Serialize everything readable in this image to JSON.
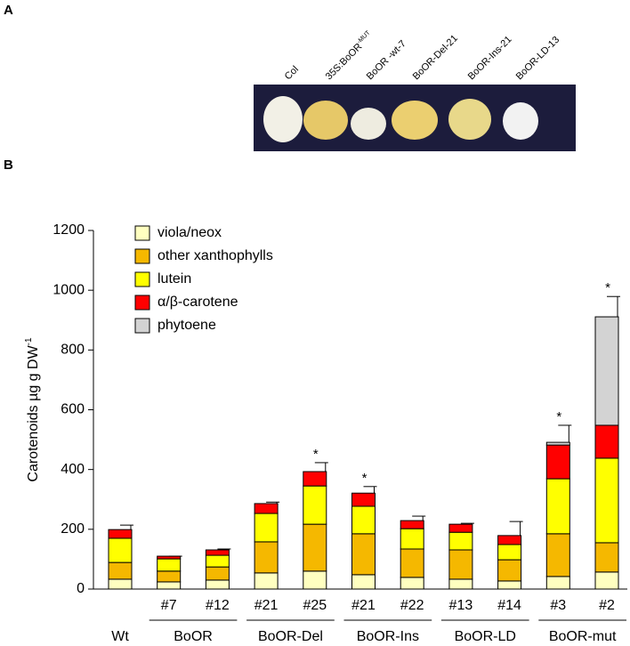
{
  "panel_a": {
    "letter": "A",
    "photo_labels": [
      {
        "text": "Col"
      },
      {
        "text": "35S:BoOR",
        "sup": "-MUT"
      },
      {
        "text": "BoOR -wt-7"
      },
      {
        "text": "BoOR-Del-21"
      },
      {
        "text": "BoOR-Ins-21"
      },
      {
        "text": "BoOR-LD-13"
      }
    ]
  },
  "panel_b": {
    "letter": "B"
  },
  "chart_data": {
    "type": "stacked_bar",
    "ylabel": {
      "text": "Carotenoids µg g DW",
      "sup": "-1"
    },
    "categories": [
      "Wt",
      "#7",
      "#12",
      "#21",
      "#25",
      "#21",
      "#22",
      "#13",
      "#14",
      "#3",
      "#2"
    ],
    "groups": [
      null,
      "BoOR",
      "BoOR",
      "BoOR-Del",
      "BoOR-Del",
      "BoOR-Ins",
      "BoOR-Ins",
      "BoOR-LD",
      "BoOR-LD",
      "BoOR-mut",
      "BoOR-mut"
    ],
    "series": [
      {
        "name": "viola/neox",
        "color": "#ffffc0",
        "values": [
          33,
          24,
          30,
          54,
          60,
          48,
          39,
          33,
          27,
          42,
          57
        ]
      },
      {
        "name": "other xanthophylls",
        "color": "#f5b800",
        "values": [
          56,
          36,
          44,
          104,
          157,
          137,
          95,
          98,
          71,
          143,
          98
        ]
      },
      {
        "name": "lutein",
        "color": "#ffff00",
        "values": [
          81,
          41,
          39,
          95,
          128,
          92,
          68,
          59,
          51,
          184,
          283
        ]
      },
      {
        "name": "α/β-carotene",
        "color": "#ff0000",
        "values": [
          29,
          9,
          18,
          33,
          48,
          44,
          27,
          27,
          30,
          113,
          110
        ]
      },
      {
        "name": "phytoene",
        "color": "#d3d3d3",
        "values": [
          0,
          0,
          0,
          0,
          0,
          0,
          0,
          0,
          0,
          9,
          363
        ]
      }
    ],
    "errors": [
      15,
      0,
      3,
      5,
      30,
      22,
      15,
      3,
      47,
      57,
      68
    ],
    "significance": [
      null,
      null,
      null,
      null,
      "*",
      "*",
      null,
      null,
      null,
      "*",
      "*"
    ],
    "ylim": [
      0,
      1200
    ],
    "yticks": [
      0,
      200,
      400,
      600,
      800,
      1000,
      1200
    ]
  }
}
